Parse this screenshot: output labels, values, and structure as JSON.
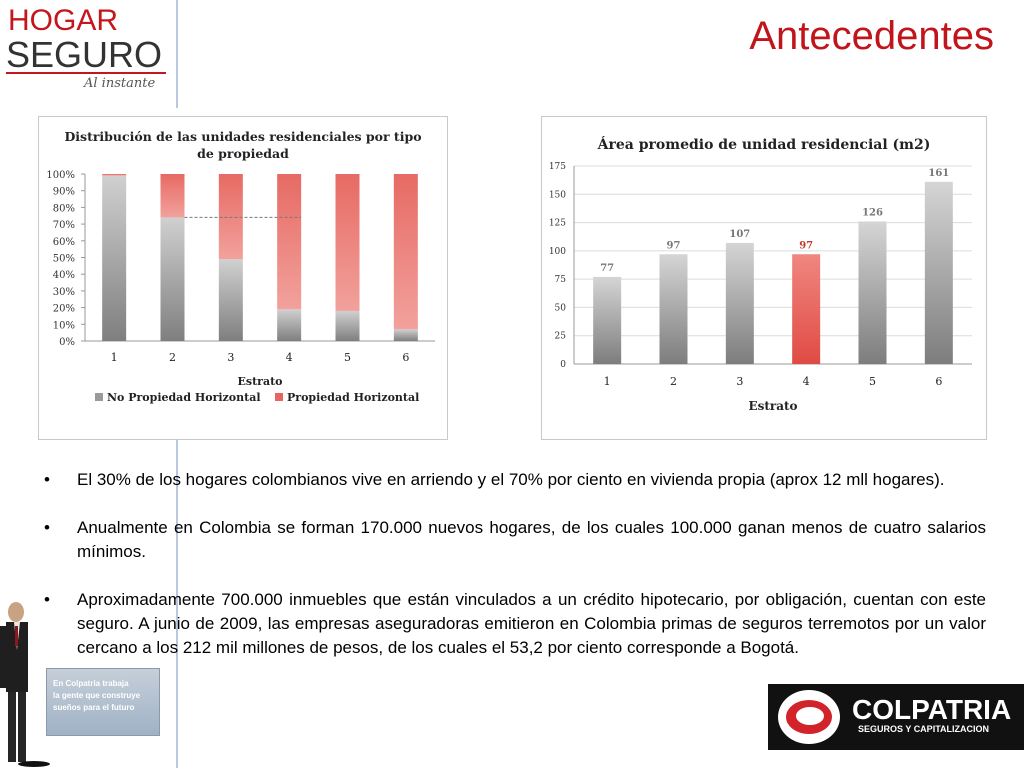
{
  "header": {
    "logo_line1": "HOGAR",
    "logo_line2": "SEGURO",
    "logo_tagline": "Al instante",
    "title": "Antecedentes"
  },
  "colors": {
    "title_red": "#c0151b",
    "gray_bar": "#9a9a9a",
    "red_bar": "#e8645e",
    "accent_blue": "#b9c8dc"
  },
  "chart_data": [
    {
      "type": "bar",
      "stacked": true,
      "title": "Distribución de las unidades residenciales por tipo de propiedad",
      "xlabel": "Estrato",
      "ylabel": "",
      "categories": [
        "1",
        "2",
        "3",
        "4",
        "5",
        "6"
      ],
      "y_tick_labels": [
        "0%",
        "10%",
        "20%",
        "30%",
        "40%",
        "50%",
        "60%",
        "70%",
        "80%",
        "90%",
        "100%"
      ],
      "ylim": [
        0,
        100
      ],
      "series": [
        {
          "name": "No Propiedad Horizontal",
          "color": "#9a9a9a",
          "values": [
            99,
            74,
            49,
            19,
            18,
            7
          ]
        },
        {
          "name": "Propiedad Horizontal",
          "color": "#e8645e",
          "values": [
            1,
            26,
            51,
            81,
            82,
            93
          ]
        }
      ],
      "legend_position": "bottom",
      "grid": false
    },
    {
      "type": "bar",
      "title": "Área promedio de unidad residencial (m2)",
      "xlabel": "Estrato",
      "ylabel": "",
      "categories": [
        "1",
        "2",
        "3",
        "4",
        "5",
        "6"
      ],
      "values": [
        77,
        97,
        107,
        97,
        126,
        161
      ],
      "data_labels": [
        "77",
        "97",
        "107",
        "97",
        "126",
        "161"
      ],
      "highlight_index": 3,
      "highlight_color": "#e8645e",
      "y_tick_labels": [
        "0",
        "25",
        "50",
        "75",
        "100",
        "125",
        "150",
        "175"
      ],
      "ylim": [
        0,
        175
      ],
      "grid": true
    }
  ],
  "bullets": [
    "El 30% de los hogares colombianos vive en arriendo y el 70% por ciento en vivienda propia (aprox 12 mll hogares).",
    "Anualmente en Colombia se forman 170.000 nuevos hogares, de los cuales 100.000 ganan menos de cuatro salarios mínimos.",
    "Aproximadamente 700.000 inmuebles que están vinculados a un crédito hipotecario, por obligación, cuentan con este seguro. A junio de 2009, las empresas aseguradoras emitieron en Colombia primas de seguros terremotos por un valor cercano a los 212 mil millones de pesos, de los cuales el 53,2 por ciento corresponde a Bogotá."
  ],
  "bullet_symbol": "•",
  "footer": {
    "sign_line1": "En Colpatria trabaja",
    "sign_line2": "la gente que construye",
    "sign_line3": "sueños para el futuro",
    "brand_name": "COLPATRIA",
    "brand_sub": "SEGUROS Y CAPITALIZACION"
  }
}
